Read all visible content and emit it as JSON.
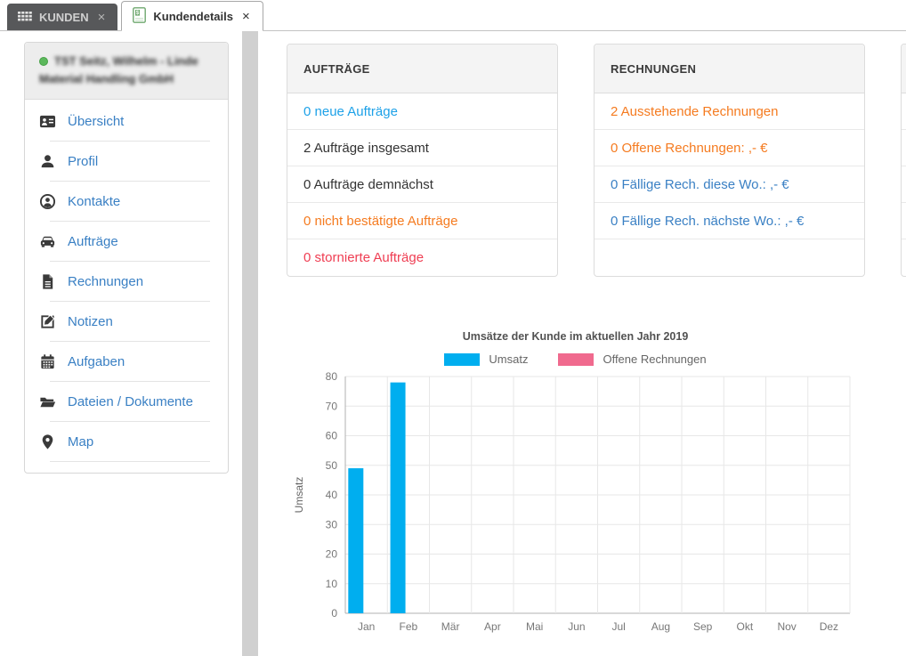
{
  "palette": {
    "link_blue": "#3a80c4",
    "bright_blue": "#1da1e8",
    "orange": "#f57b20",
    "red": "#ef3e53",
    "dark": "#333333"
  },
  "tabs": [
    {
      "label": "KUNDEN",
      "close": "×"
    },
    {
      "label": "Kundendetails",
      "close": "×"
    }
  ],
  "sidebar": {
    "customer_name": "TST Seitz, Wilhelm - Linde Material Handling GmbH",
    "items": [
      {
        "label": "Übersicht",
        "icon": "address-card-icon"
      },
      {
        "label": "Profil",
        "icon": "user-icon"
      },
      {
        "label": "Kontakte",
        "icon": "user-circle-icon"
      },
      {
        "label": "Aufträge",
        "icon": "car-icon"
      },
      {
        "label": "Rechnungen",
        "icon": "invoice-icon"
      },
      {
        "label": "Notizen",
        "icon": "edit-icon"
      },
      {
        "label": "Aufgaben",
        "icon": "calendar-icon"
      },
      {
        "label": "Dateien / Dokumente",
        "icon": "folder-icon"
      },
      {
        "label": "Map",
        "icon": "map-marker-icon"
      }
    ]
  },
  "cards": {
    "auftraege": {
      "title": "AUFTRÄGE",
      "rows": [
        {
          "text": "0 neue Aufträge",
          "color": "bright_blue"
        },
        {
          "text": "2 Aufträge insgesamt",
          "color": "dark"
        },
        {
          "text": "0 Aufträge demnächst",
          "color": "dark"
        },
        {
          "text": "0 nicht bestätigte Aufträge",
          "color": "orange"
        },
        {
          "text": "0 stornierte Aufträge",
          "color": "red"
        }
      ]
    },
    "rechnungen": {
      "title": "RECHNUNGEN",
      "rows": [
        {
          "text": "2 Ausstehende Rechnungen",
          "color": "orange"
        },
        {
          "text": "0 Offene Rechnungen: ,- €",
          "color": "orange"
        },
        {
          "text": "0 Fällige Rech. diese Wo.: ,- €",
          "color": "link_blue"
        },
        {
          "text": "0 Fällige Rech. nächste Wo.: ,- €",
          "color": "link_blue"
        }
      ]
    }
  },
  "chart_data": {
    "type": "bar",
    "title": "Umsätze der Kunde im aktuellen Jahr 2019",
    "categories": [
      "Jan",
      "Feb",
      "Mär",
      "Apr",
      "Mai",
      "Jun",
      "Jul",
      "Aug",
      "Sep",
      "Okt",
      "Nov",
      "Dez"
    ],
    "series": [
      {
        "name": "Umsatz",
        "color": "#00aeef",
        "values": [
          49,
          78,
          0,
          0,
          0,
          0,
          0,
          0,
          0,
          0,
          0,
          0
        ]
      },
      {
        "name": "Offene Rechnungen",
        "color": "#f06a8e",
        "values": [
          0,
          0,
          0,
          0,
          0,
          0,
          0,
          0,
          0,
          0,
          0,
          0
        ]
      }
    ],
    "xlabel": "",
    "ylabel": "Umsatz",
    "ylim": [
      0,
      80
    ],
    "ytick_step": 10,
    "grid": true,
    "legend_position": "top"
  }
}
